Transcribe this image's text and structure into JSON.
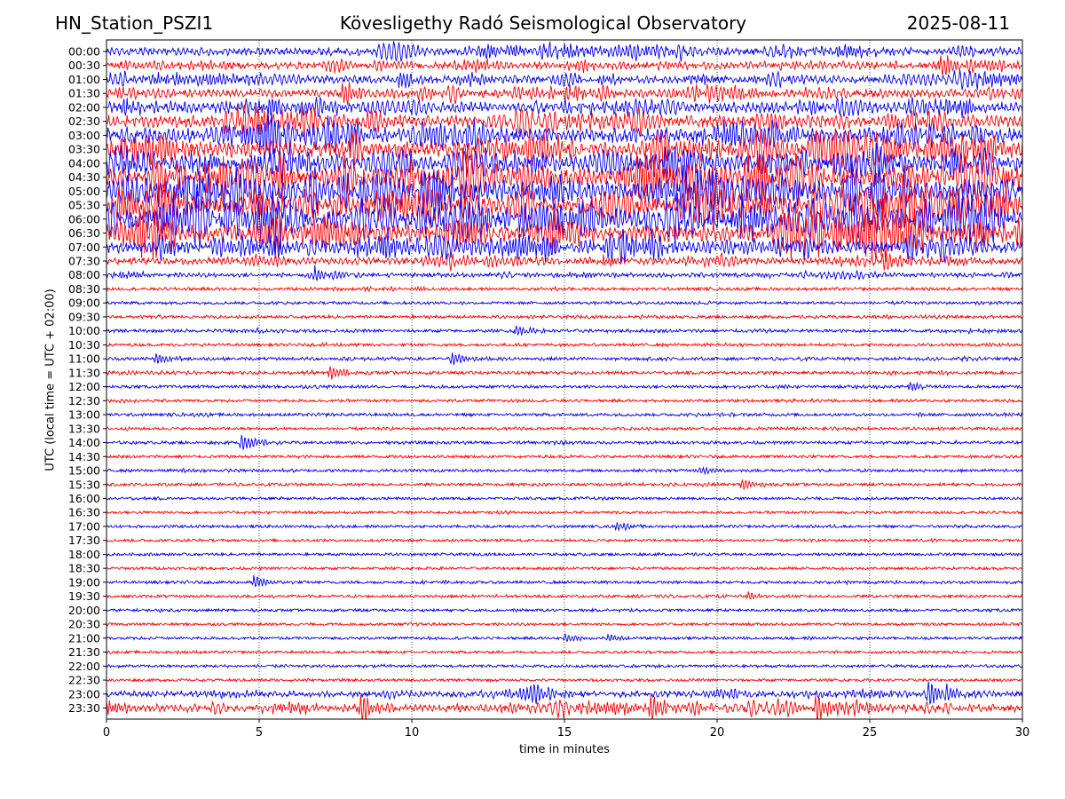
{
  "header": {
    "station": "HN_Station_PSZI1",
    "observatory": "Kövesligethy Radó Seismological Observatory",
    "date": "2025-08-11"
  },
  "chart_data": {
    "type": "line",
    "xlabel": "time in minutes",
    "ylabel": "UTC (local time = UTC + 02:00)",
    "xlim": [
      0,
      30
    ],
    "x_ticks": [
      "0",
      "5",
      "10",
      "15",
      "20",
      "25",
      "30"
    ],
    "grid": "vertical dotted lines at 5-minute ticks",
    "row_labels": [
      "00:00",
      "00:30",
      "01:00",
      "01:30",
      "02:00",
      "02:30",
      "03:00",
      "03:30",
      "04:00",
      "04:30",
      "05:00",
      "05:30",
      "06:00",
      "06:30",
      "07:00",
      "07:30",
      "08:00",
      "08:30",
      "09:00",
      "09:30",
      "10:00",
      "10:30",
      "11:00",
      "11:30",
      "12:00",
      "12:30",
      "13:00",
      "13:30",
      "14:00",
      "14:30",
      "15:00",
      "15:30",
      "16:00",
      "16:30",
      "17:00",
      "17:30",
      "18:00",
      "18:30",
      "19:00",
      "19:30",
      "20:00",
      "20:30",
      "21:00",
      "21:30",
      "22:00",
      "22:30",
      "23:00",
      "23:30"
    ],
    "trace_colors": [
      "#0000ff",
      "#ff0000"
    ],
    "relative_activity": [
      0.35,
      0.3,
      0.35,
      0.4,
      0.5,
      0.6,
      0.75,
      0.8,
      0.85,
      0.95,
      0.95,
      0.95,
      1.0,
      0.9,
      0.6,
      0.3,
      0.15,
      0.06,
      0.05,
      0.06,
      0.08,
      0.05,
      0.08,
      0.07,
      0.06,
      0.05,
      0.06,
      0.05,
      0.06,
      0.05,
      0.05,
      0.05,
      0.04,
      0.03,
      0.04,
      0.04,
      0.04,
      0.04,
      0.05,
      0.04,
      0.04,
      0.04,
      0.04,
      0.03,
      0.04,
      0.04,
      0.25,
      0.35
    ],
    "events": [
      {
        "row": "00:30",
        "minute": 27.3,
        "amp": 1.2
      },
      {
        "row": "01:00",
        "minute": 9.6,
        "amp": 1.1
      },
      {
        "row": "01:30",
        "minute": 7.7,
        "amp": 1.3
      },
      {
        "row": "07:00",
        "minute": 1.7,
        "amp": 1.2
      },
      {
        "row": "07:00",
        "minute": 9.6,
        "amp": 1.1
      },
      {
        "row": "07:30",
        "minute": 25.4,
        "amp": 1.0
      },
      {
        "row": "08:00",
        "minute": 6.8,
        "amp": 0.8
      },
      {
        "row": "10:00",
        "minute": 13.4,
        "amp": 0.5
      },
      {
        "row": "11:00",
        "minute": 1.6,
        "amp": 0.6
      },
      {
        "row": "11:00",
        "minute": 11.3,
        "amp": 0.7
      },
      {
        "row": "11:30",
        "minute": 7.3,
        "amp": 0.8
      },
      {
        "row": "12:00",
        "minute": 26.3,
        "amp": 0.5
      },
      {
        "row": "14:00",
        "minute": 4.4,
        "amp": 0.9
      },
      {
        "row": "15:00",
        "minute": 19.4,
        "amp": 0.4
      },
      {
        "row": "15:30",
        "minute": 20.8,
        "amp": 0.5
      },
      {
        "row": "17:00",
        "minute": 16.7,
        "amp": 0.5
      },
      {
        "row": "19:00",
        "minute": 4.8,
        "amp": 0.7
      },
      {
        "row": "19:30",
        "minute": 21.0,
        "amp": 0.4
      },
      {
        "row": "21:00",
        "minute": 15.0,
        "amp": 0.4
      },
      {
        "row": "21:00",
        "minute": 16.4,
        "amp": 0.3
      },
      {
        "row": "23:00",
        "minute": 26.9,
        "amp": 1.2
      },
      {
        "row": "23:00",
        "minute": 27.5,
        "amp": 0.9
      },
      {
        "row": "23:30",
        "minute": 8.3,
        "amp": 1.4
      },
      {
        "row": "23:30",
        "minute": 17.8,
        "amp": 1.3
      },
      {
        "row": "23:30",
        "minute": 23.2,
        "amp": 1.3
      }
    ]
  }
}
